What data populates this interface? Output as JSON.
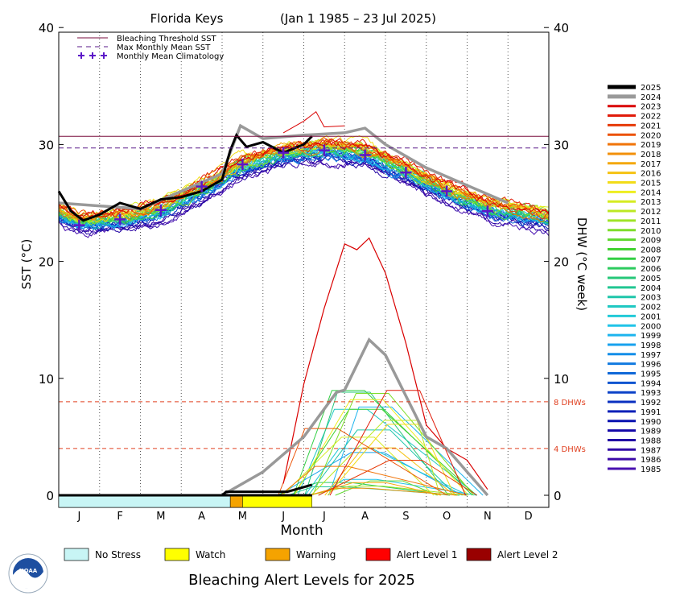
{
  "chart_data": {
    "type": "line",
    "title": "Florida Keys",
    "date_range": "(Jan 1 1985 – 23 Jul 2025)",
    "xlabel": "Month",
    "ylabel_left": "SST (°C)",
    "ylabel_right": "DHW (°C week)",
    "ylim": [
      0,
      40
    ],
    "yticks": [
      "0",
      "10",
      "20",
      "30",
      "40"
    ],
    "months": [
      "J",
      "F",
      "M",
      "A",
      "M",
      "J",
      "J",
      "A",
      "S",
      "O",
      "N",
      "D"
    ],
    "bleaching_threshold_sst": 30.7,
    "max_monthly_mean_sst": 29.7,
    "dhw_reference_lines": [
      {
        "label": "8 DHWs",
        "value": 8
      },
      {
        "label": "4 DHWs",
        "value": 4
      }
    ],
    "legend": [
      {
        "label": "Bleaching Threshold SST",
        "color": "#7a0e3f",
        "style": "solid"
      },
      {
        "label": "Max Monthly Mean SST",
        "color": "#5a1a8a",
        "style": "dashed"
      },
      {
        "label": "Monthly Mean Climatology",
        "color": "#5b16c8",
        "style": "plus"
      }
    ],
    "monthly_mean_climatology": [
      {
        "month": 1.5,
        "sst": 23.1
      },
      {
        "month": 2.5,
        "sst": 23.6
      },
      {
        "month": 3.5,
        "sst": 24.4
      },
      {
        "month": 4.5,
        "sst": 26.4
      },
      {
        "month": 5.5,
        "sst": 28.3
      },
      {
        "month": 6.5,
        "sst": 29.3
      },
      {
        "month": 7.5,
        "sst": 29.5
      },
      {
        "month": 8.5,
        "sst": 29.1
      },
      {
        "month": 9.5,
        "sst": 27.6
      },
      {
        "month": 10.5,
        "sst": 26.0
      },
      {
        "month": 11.5,
        "sst": 24.3
      }
    ],
    "years": [
      "2025",
      "2024",
      "2023",
      "2022",
      "2021",
      "2020",
      "2019",
      "2018",
      "2017",
      "2016",
      "2015",
      "2014",
      "2013",
      "2012",
      "2011",
      "2010",
      "2009",
      "2008",
      "2007",
      "2006",
      "2005",
      "2004",
      "2003",
      "2002",
      "2001",
      "2000",
      "1999",
      "1998",
      "1997",
      "1996",
      "1995",
      "1994",
      "1993",
      "1992",
      "1991",
      "1990",
      "1989",
      "1988",
      "1987",
      "1986",
      "1985"
    ],
    "year_colors": [
      "#000000",
      "#999999",
      "#d90000",
      "#e01b0a",
      "#e63a08",
      "#ec5205",
      "#f07408",
      "#f2900a",
      "#f4a80c",
      "#f5c212",
      "#f2dc18",
      "#eeee20",
      "#d6ec22",
      "#bce824",
      "#9fe426",
      "#7edd2a",
      "#5ed82e",
      "#42d232",
      "#32cf44",
      "#2ccb5e",
      "#26c778",
      "#22c692",
      "#20c6aa",
      "#20c8c2",
      "#22cad8",
      "#20c4e8",
      "#1cb4ee",
      "#18a2ee",
      "#148ee8",
      "#127ae0",
      "#1068d8",
      "#0e54d0",
      "#0c42c8",
      "#0a30c0",
      "#0a20b8",
      "#0a12b0",
      "#1408a8",
      "#2204a4",
      "#3008a6",
      "#3c0aa8",
      "#4810b0"
    ],
    "sst_2025": [
      {
        "month": 1.0,
        "sst": 26.0
      },
      {
        "month": 1.3,
        "sst": 24.3
      },
      {
        "month": 1.6,
        "sst": 23.5
      },
      {
        "month": 2.0,
        "sst": 24.0
      },
      {
        "month": 2.5,
        "sst": 25.0
      },
      {
        "month": 3.0,
        "sst": 24.5
      },
      {
        "month": 3.5,
        "sst": 25.3
      },
      {
        "month": 4.0,
        "sst": 25.5
      },
      {
        "month": 4.5,
        "sst": 26.0
      },
      {
        "month": 5.0,
        "sst": 27.0
      },
      {
        "month": 5.2,
        "sst": 29.5
      },
      {
        "month": 5.35,
        "sst": 30.8
      },
      {
        "month": 5.6,
        "sst": 29.8
      },
      {
        "month": 6.0,
        "sst": 30.2
      },
      {
        "month": 6.5,
        "sst": 29.3
      },
      {
        "month": 7.0,
        "sst": 30.0
      },
      {
        "month": 7.2,
        "sst": 30.7
      }
    ],
    "sst_2024": [
      {
        "month": 1.0,
        "sst": 25.0
      },
      {
        "month": 3.0,
        "sst": 24.5
      },
      {
        "month": 5.0,
        "sst": 27.5
      },
      {
        "month": 5.45,
        "sst": 31.6
      },
      {
        "month": 6.0,
        "sst": 30.5
      },
      {
        "month": 7.0,
        "sst": 30.8
      },
      {
        "month": 8.0,
        "sst": 31.0
      },
      {
        "month": 8.5,
        "sst": 31.4
      },
      {
        "month": 9.0,
        "sst": 30.0
      },
      {
        "month": 10.0,
        "sst": 28.0
      },
      {
        "month": 11.0,
        "sst": 26.5
      },
      {
        "month": 12.0,
        "sst": 25.0
      }
    ],
    "sst_2023": [
      {
        "month": 6.5,
        "sst": 31.0
      },
      {
        "month": 7.0,
        "sst": 32.0
      },
      {
        "month": 7.3,
        "sst": 32.8
      },
      {
        "month": 7.5,
        "sst": 31.5
      },
      {
        "month": 8.0,
        "sst": 31.6
      }
    ],
    "dhw_2023": [
      {
        "month": 6.5,
        "dhw": 1
      },
      {
        "month": 7.0,
        "dhw": 9.5
      },
      {
        "month": 7.5,
        "dhw": 16
      },
      {
        "month": 8.0,
        "dhw": 21.5
      },
      {
        "month": 8.3,
        "dhw": 21
      },
      {
        "month": 8.6,
        "dhw": 22
      },
      {
        "month": 9.0,
        "dhw": 19
      },
      {
        "month": 9.5,
        "dhw": 13
      },
      {
        "month": 10.0,
        "dhw": 6
      },
      {
        "month": 10.5,
        "dhw": 4
      },
      {
        "month": 11.0,
        "dhw": 3
      },
      {
        "month": 11.5,
        "dhw": 0.5
      }
    ],
    "dhw_2024": [
      {
        "month": 5.0,
        "dhw": 0
      },
      {
        "month": 6.0,
        "dhw": 2
      },
      {
        "month": 7.0,
        "dhw": 5
      },
      {
        "month": 7.8,
        "dhw": 8.8
      },
      {
        "month": 8.0,
        "dhw": 9
      },
      {
        "month": 8.6,
        "dhw": 13.3
      },
      {
        "month": 9.0,
        "dhw": 12
      },
      {
        "month": 9.5,
        "dhw": 8.5
      },
      {
        "month": 10.0,
        "dhw": 5
      },
      {
        "month": 10.5,
        "dhw": 4
      },
      {
        "month": 11.0,
        "dhw": 2
      },
      {
        "month": 11.5,
        "dhw": 0
      }
    ],
    "dhw_2025": [
      {
        "month": 5.0,
        "dhw": 0
      },
      {
        "month": 5.1,
        "dhw": 0.3
      },
      {
        "month": 6.0,
        "dhw": 0.3
      },
      {
        "month": 6.6,
        "dhw": 0.3
      },
      {
        "month": 7.2,
        "dhw": 0.9
      }
    ]
  },
  "alert_bar": [
    {
      "label": "No Stress",
      "color": "#c8f5f5",
      "start": 1.0,
      "end": 5.2
    },
    {
      "label": "Warning",
      "color": "#f5a300",
      "start": 5.2,
      "end": 5.5
    },
    {
      "label": "Watch",
      "color": "#ffff00",
      "start": 5.5,
      "end": 7.2
    }
  ],
  "alert_legend": [
    {
      "label": "No Stress",
      "color": "#c8f5f5"
    },
    {
      "label": "Watch",
      "color": "#ffff00"
    },
    {
      "label": "Warning",
      "color": "#f5a300"
    },
    {
      "label": "Alert Level 1",
      "color": "#ff0000"
    },
    {
      "label": "Alert Level 2",
      "color": "#990000"
    }
  ],
  "footer_title": "Bleaching Alert Levels for 2025",
  "logo_text": "NOAA"
}
